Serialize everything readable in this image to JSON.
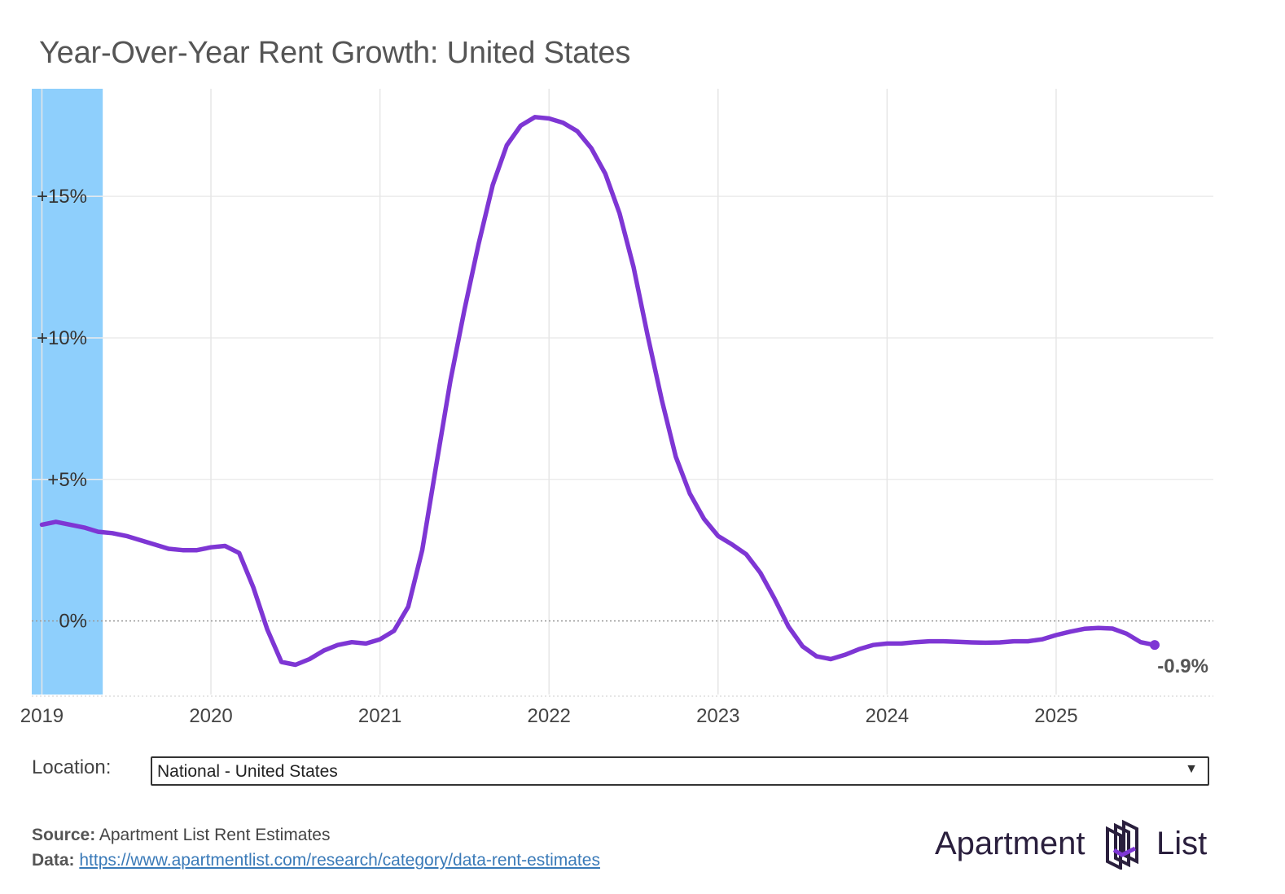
{
  "header": {
    "title": "Year-Over-Year Rent Growth: United States"
  },
  "chart_data": {
    "type": "line",
    "title": "Year-Over-Year Rent Growth: United States",
    "xlabel": "",
    "ylabel": "",
    "x_ticks": [
      "2019",
      "2020",
      "2021",
      "2022",
      "2023",
      "2024",
      "2025"
    ],
    "y_ticks": [
      "0%",
      "+5%",
      "+10%",
      "+15%"
    ],
    "y_tick_values": [
      0,
      5,
      10,
      15
    ],
    "ylim": [
      -2.6,
      18.8
    ],
    "xlim": [
      2018.94,
      2025.93
    ],
    "series": [
      {
        "name": "National - United States",
        "color": "#7e36d4",
        "x": [
          2019.0,
          2019.083,
          2019.167,
          2019.25,
          2019.333,
          2019.417,
          2019.5,
          2019.583,
          2019.667,
          2019.75,
          2019.833,
          2019.917,
          2020.0,
          2020.083,
          2020.167,
          2020.25,
          2020.333,
          2020.417,
          2020.5,
          2020.583,
          2020.667,
          2020.75,
          2020.833,
          2020.917,
          2021.0,
          2021.083,
          2021.167,
          2021.25,
          2021.333,
          2021.417,
          2021.5,
          2021.583,
          2021.667,
          2021.75,
          2021.833,
          2021.917,
          2022.0,
          2022.083,
          2022.167,
          2022.25,
          2022.333,
          2022.417,
          2022.5,
          2022.583,
          2022.667,
          2022.75,
          2022.833,
          2022.917,
          2023.0,
          2023.083,
          2023.167,
          2023.25,
          2023.333,
          2023.417,
          2023.5,
          2023.583,
          2023.667,
          2023.75,
          2023.833,
          2023.917,
          2024.0,
          2024.083,
          2024.167,
          2024.25,
          2024.333,
          2024.417,
          2024.5,
          2024.583,
          2024.667,
          2024.75,
          2024.833,
          2024.917,
          2025.0,
          2025.083,
          2025.167,
          2025.25,
          2025.333,
          2025.417,
          2025.5,
          2025.583
        ],
        "values": [
          3.4,
          3.5,
          3.4,
          3.3,
          3.15,
          3.1,
          3.0,
          2.85,
          2.7,
          2.55,
          2.5,
          2.5,
          2.6,
          2.65,
          2.4,
          1.2,
          -0.3,
          -1.45,
          -1.55,
          -1.35,
          -1.05,
          -0.85,
          -0.75,
          -0.8,
          -0.65,
          -0.35,
          0.5,
          2.5,
          5.5,
          8.5,
          11.0,
          13.3,
          15.4,
          16.8,
          17.5,
          17.8,
          17.75,
          17.6,
          17.3,
          16.7,
          15.8,
          14.4,
          12.5,
          10.1,
          7.8,
          5.8,
          4.5,
          3.6,
          3.0,
          2.7,
          2.35,
          1.7,
          0.8,
          -0.2,
          -0.9,
          -1.25,
          -1.35,
          -1.2,
          -1.0,
          -0.85,
          -0.8,
          -0.8,
          -0.75,
          -0.72,
          -0.72,
          -0.74,
          -0.76,
          -0.77,
          -0.76,
          -0.72,
          -0.72,
          -0.65,
          -0.5,
          -0.38,
          -0.28,
          -0.25,
          -0.27,
          -0.45,
          -0.75,
          -0.85
        ]
      }
    ],
    "last_value_label": "-0.9%",
    "highlight_band": {
      "x_range": [
        2018.94,
        2019.36
      ],
      "color": "#8ecffc"
    }
  },
  "controls": {
    "location_label": "Location:",
    "location_value": "National - United States",
    "dropdown_arrow": "▼"
  },
  "footer": {
    "source_label": "Source:",
    "source_text": " Apartment List Rent Estimates",
    "data_label": "Data:",
    "data_link": "https://www.apartmentlist.com/research/category/data-rent-estimates",
    "logo_left": "Apartment",
    "logo_right": "List"
  }
}
